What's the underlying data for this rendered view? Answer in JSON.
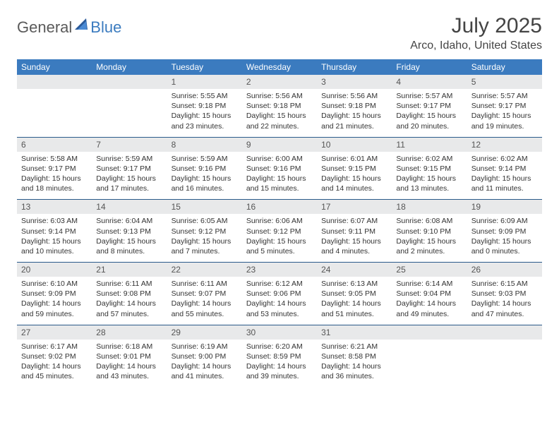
{
  "logo": {
    "general": "General",
    "blue": "Blue"
  },
  "title": "July 2025",
  "location": "Arco, Idaho, United States",
  "colors": {
    "header_bg": "#3b7bbf",
    "daynum_bg": "#e8e9ea",
    "row_border": "#2a5a8a",
    "text": "#333333",
    "title_text": "#444444"
  },
  "weekdays": [
    "Sunday",
    "Monday",
    "Tuesday",
    "Wednesday",
    "Thursday",
    "Friday",
    "Saturday"
  ],
  "weeks": [
    [
      {
        "n": "",
        "lines": [
          "",
          "",
          "",
          ""
        ]
      },
      {
        "n": "",
        "lines": [
          "",
          "",
          "",
          ""
        ]
      },
      {
        "n": "1",
        "lines": [
          "Sunrise: 5:55 AM",
          "Sunset: 9:18 PM",
          "Daylight: 15 hours",
          "and 23 minutes."
        ]
      },
      {
        "n": "2",
        "lines": [
          "Sunrise: 5:56 AM",
          "Sunset: 9:18 PM",
          "Daylight: 15 hours",
          "and 22 minutes."
        ]
      },
      {
        "n": "3",
        "lines": [
          "Sunrise: 5:56 AM",
          "Sunset: 9:18 PM",
          "Daylight: 15 hours",
          "and 21 minutes."
        ]
      },
      {
        "n": "4",
        "lines": [
          "Sunrise: 5:57 AM",
          "Sunset: 9:17 PM",
          "Daylight: 15 hours",
          "and 20 minutes."
        ]
      },
      {
        "n": "5",
        "lines": [
          "Sunrise: 5:57 AM",
          "Sunset: 9:17 PM",
          "Daylight: 15 hours",
          "and 19 minutes."
        ]
      }
    ],
    [
      {
        "n": "6",
        "lines": [
          "Sunrise: 5:58 AM",
          "Sunset: 9:17 PM",
          "Daylight: 15 hours",
          "and 18 minutes."
        ]
      },
      {
        "n": "7",
        "lines": [
          "Sunrise: 5:59 AM",
          "Sunset: 9:17 PM",
          "Daylight: 15 hours",
          "and 17 minutes."
        ]
      },
      {
        "n": "8",
        "lines": [
          "Sunrise: 5:59 AM",
          "Sunset: 9:16 PM",
          "Daylight: 15 hours",
          "and 16 minutes."
        ]
      },
      {
        "n": "9",
        "lines": [
          "Sunrise: 6:00 AM",
          "Sunset: 9:16 PM",
          "Daylight: 15 hours",
          "and 15 minutes."
        ]
      },
      {
        "n": "10",
        "lines": [
          "Sunrise: 6:01 AM",
          "Sunset: 9:15 PM",
          "Daylight: 15 hours",
          "and 14 minutes."
        ]
      },
      {
        "n": "11",
        "lines": [
          "Sunrise: 6:02 AM",
          "Sunset: 9:15 PM",
          "Daylight: 15 hours",
          "and 13 minutes."
        ]
      },
      {
        "n": "12",
        "lines": [
          "Sunrise: 6:02 AM",
          "Sunset: 9:14 PM",
          "Daylight: 15 hours",
          "and 11 minutes."
        ]
      }
    ],
    [
      {
        "n": "13",
        "lines": [
          "Sunrise: 6:03 AM",
          "Sunset: 9:14 PM",
          "Daylight: 15 hours",
          "and 10 minutes."
        ]
      },
      {
        "n": "14",
        "lines": [
          "Sunrise: 6:04 AM",
          "Sunset: 9:13 PM",
          "Daylight: 15 hours",
          "and 8 minutes."
        ]
      },
      {
        "n": "15",
        "lines": [
          "Sunrise: 6:05 AM",
          "Sunset: 9:12 PM",
          "Daylight: 15 hours",
          "and 7 minutes."
        ]
      },
      {
        "n": "16",
        "lines": [
          "Sunrise: 6:06 AM",
          "Sunset: 9:12 PM",
          "Daylight: 15 hours",
          "and 5 minutes."
        ]
      },
      {
        "n": "17",
        "lines": [
          "Sunrise: 6:07 AM",
          "Sunset: 9:11 PM",
          "Daylight: 15 hours",
          "and 4 minutes."
        ]
      },
      {
        "n": "18",
        "lines": [
          "Sunrise: 6:08 AM",
          "Sunset: 9:10 PM",
          "Daylight: 15 hours",
          "and 2 minutes."
        ]
      },
      {
        "n": "19",
        "lines": [
          "Sunrise: 6:09 AM",
          "Sunset: 9:09 PM",
          "Daylight: 15 hours",
          "and 0 minutes."
        ]
      }
    ],
    [
      {
        "n": "20",
        "lines": [
          "Sunrise: 6:10 AM",
          "Sunset: 9:09 PM",
          "Daylight: 14 hours",
          "and 59 minutes."
        ]
      },
      {
        "n": "21",
        "lines": [
          "Sunrise: 6:11 AM",
          "Sunset: 9:08 PM",
          "Daylight: 14 hours",
          "and 57 minutes."
        ]
      },
      {
        "n": "22",
        "lines": [
          "Sunrise: 6:11 AM",
          "Sunset: 9:07 PM",
          "Daylight: 14 hours",
          "and 55 minutes."
        ]
      },
      {
        "n": "23",
        "lines": [
          "Sunrise: 6:12 AM",
          "Sunset: 9:06 PM",
          "Daylight: 14 hours",
          "and 53 minutes."
        ]
      },
      {
        "n": "24",
        "lines": [
          "Sunrise: 6:13 AM",
          "Sunset: 9:05 PM",
          "Daylight: 14 hours",
          "and 51 minutes."
        ]
      },
      {
        "n": "25",
        "lines": [
          "Sunrise: 6:14 AM",
          "Sunset: 9:04 PM",
          "Daylight: 14 hours",
          "and 49 minutes."
        ]
      },
      {
        "n": "26",
        "lines": [
          "Sunrise: 6:15 AM",
          "Sunset: 9:03 PM",
          "Daylight: 14 hours",
          "and 47 minutes."
        ]
      }
    ],
    [
      {
        "n": "27",
        "lines": [
          "Sunrise: 6:17 AM",
          "Sunset: 9:02 PM",
          "Daylight: 14 hours",
          "and 45 minutes."
        ]
      },
      {
        "n": "28",
        "lines": [
          "Sunrise: 6:18 AM",
          "Sunset: 9:01 PM",
          "Daylight: 14 hours",
          "and 43 minutes."
        ]
      },
      {
        "n": "29",
        "lines": [
          "Sunrise: 6:19 AM",
          "Sunset: 9:00 PM",
          "Daylight: 14 hours",
          "and 41 minutes."
        ]
      },
      {
        "n": "30",
        "lines": [
          "Sunrise: 6:20 AM",
          "Sunset: 8:59 PM",
          "Daylight: 14 hours",
          "and 39 minutes."
        ]
      },
      {
        "n": "31",
        "lines": [
          "Sunrise: 6:21 AM",
          "Sunset: 8:58 PM",
          "Daylight: 14 hours",
          "and 36 minutes."
        ]
      },
      {
        "n": "",
        "lines": [
          "",
          "",
          "",
          ""
        ]
      },
      {
        "n": "",
        "lines": [
          "",
          "",
          "",
          ""
        ]
      }
    ]
  ]
}
